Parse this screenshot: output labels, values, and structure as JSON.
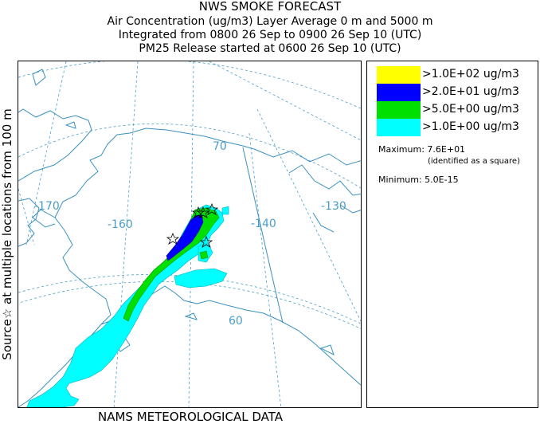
{
  "title": {
    "line1": "NWS SMOKE FORECAST",
    "line2": "Air Concentration (ug/m3) Layer Average    0 m and  5000 m",
    "line3": "Integrated from 0800 26 Sep to 0900 26 Sep 10 (UTC)",
    "line4": "PM25 Release started at 0600 26 Sep 10 (UTC)"
  },
  "side_label": "Source☆  at multiple locations   from   100 m",
  "bottom_label": "NAMS METEOROLOGICAL DATA",
  "map": {
    "longitude_labels": [
      "-170",
      "-160",
      "-140",
      "-130"
    ],
    "latitude_labels": [
      "70",
      "60"
    ],
    "colors": {
      "coast": "#3a90c0",
      "graticule": "#4a9ec8"
    }
  },
  "legend": {
    "levels": [
      {
        "label": ">1.0E+02 ug/m3",
        "color": "#ffff00"
      },
      {
        "label": ">2.0E+01 ug/m3",
        "color": "#0000ff"
      },
      {
        "label": ">5.0E+00 ug/m3",
        "color": "#00e000"
      },
      {
        "label": ">1.0E+00 ug/m3",
        "color": "#00ffff"
      }
    ],
    "maximum_label": "Maximum: 7.6E+01",
    "maximum_note": "(identified as a square)",
    "minimum_label": "Minimum: 5.0E-15"
  }
}
